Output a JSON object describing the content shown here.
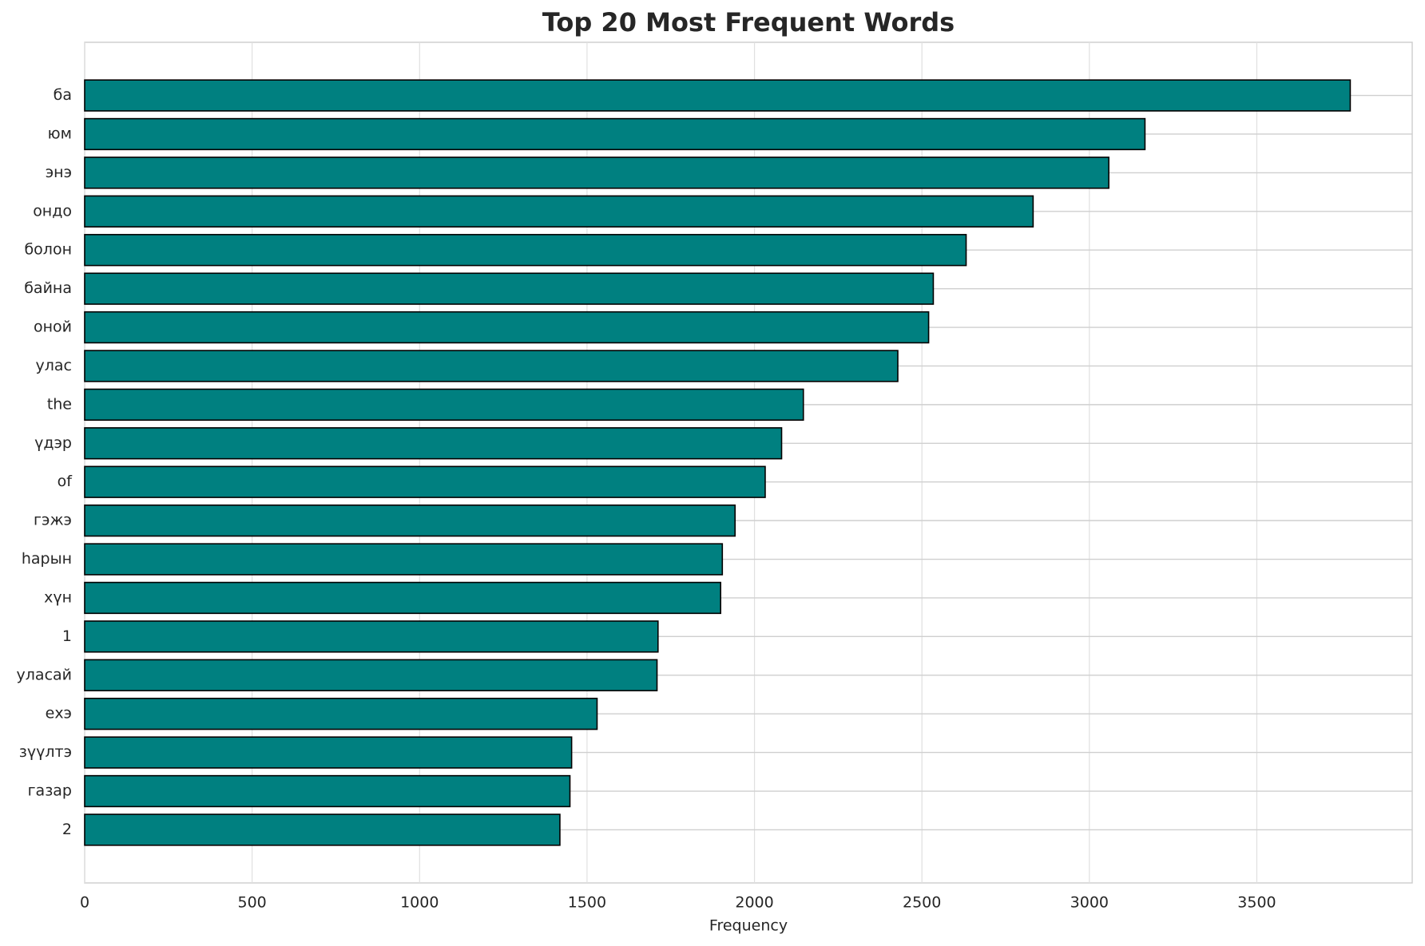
{
  "chart_data": {
    "type": "barh",
    "title": "Top 20 Most Frequent Words",
    "xlabel": "Frequency",
    "categories": [
      "ба",
      "юм",
      "энэ",
      "ондо",
      "болон",
      "байна",
      "оной",
      "улас",
      "the",
      "үдэр",
      "of",
      "гэжэ",
      "һарын",
      "хүн",
      "1",
      "уласай",
      "ехэ",
      "зүүлтэ",
      "газар",
      "2"
    ],
    "values": [
      3779,
      3166,
      3058,
      2832,
      2632,
      2534,
      2520,
      2428,
      2146,
      2081,
      2032,
      1942,
      1904,
      1899,
      1712,
      1709,
      1530,
      1454,
      1449,
      1419
    ],
    "color": "#008080",
    "edgecolor": "#000000",
    "xlim": [
      0,
      3964
    ],
    "xticks": [
      0,
      500,
      1000,
      1500,
      2000,
      2500,
      3000,
      3500
    ],
    "grid": true
  }
}
